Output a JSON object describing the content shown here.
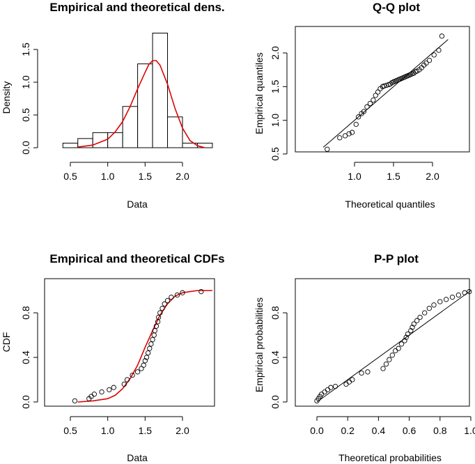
{
  "chart_data": [
    {
      "type": "bar",
      "title": "Empirical and theoretical dens.",
      "xlabel": "Data",
      "ylabel": "Density",
      "xlim": [
        0.4,
        2.4
      ],
      "ylim": [
        0,
        1.75
      ],
      "xticks": [
        "0.5",
        "1.0",
        "1.5",
        "2.0"
      ],
      "yticks": [
        "0.0",
        "0.5",
        "1.0",
        "1.5"
      ],
      "bins": [
        {
          "x0": 0.4,
          "x1": 0.6,
          "value": 0.07
        },
        {
          "x0": 0.6,
          "x1": 0.8,
          "value": 0.14
        },
        {
          "x0": 0.8,
          "x1": 1.0,
          "value": 0.23
        },
        {
          "x0": 1.0,
          "x1": 1.2,
          "value": 0.23
        },
        {
          "x0": 1.2,
          "x1": 1.4,
          "value": 0.63
        },
        {
          "x0": 1.4,
          "x1": 1.6,
          "value": 1.28
        },
        {
          "x0": 1.6,
          "x1": 1.8,
          "value": 1.75
        },
        {
          "x0": 1.8,
          "x1": 2.0,
          "value": 0.47
        },
        {
          "x0": 2.0,
          "x1": 2.2,
          "value": 0.07
        },
        {
          "x0": 2.2,
          "x1": 2.4,
          "value": 0.07
        }
      ],
      "density_curve": {
        "color": "#e00000",
        "points": [
          [
            0.6,
            0.01
          ],
          [
            0.8,
            0.04
          ],
          [
            1.0,
            0.13
          ],
          [
            1.1,
            0.24
          ],
          [
            1.2,
            0.4
          ],
          [
            1.3,
            0.63
          ],
          [
            1.4,
            0.9
          ],
          [
            1.5,
            1.15
          ],
          [
            1.55,
            1.27
          ],
          [
            1.6,
            1.33
          ],
          [
            1.65,
            1.33
          ],
          [
            1.7,
            1.26
          ],
          [
            1.8,
            0.97
          ],
          [
            1.9,
            0.6
          ],
          [
            2.0,
            0.3
          ],
          [
            2.1,
            0.11
          ],
          [
            2.2,
            0.03
          ],
          [
            2.3,
            0.0
          ]
        ]
      }
    },
    {
      "type": "scatter",
      "title": "Q-Q plot",
      "xlabel": "Theoretical quantiles",
      "ylabel": "Empirical quantiles",
      "xlim": [
        0.6,
        2.2
      ],
      "ylim": [
        0.5,
        2.3
      ],
      "xticks": [
        "1.0",
        "1.5",
        "2.0"
      ],
      "yticks": [
        "0.5",
        "1.0",
        "1.5",
        "2.0"
      ],
      "reference_line": [
        [
          0.6,
          0.6
        ],
        [
          2.2,
          2.2
        ]
      ],
      "points": [
        [
          0.65,
          0.57
        ],
        [
          0.81,
          0.74
        ],
        [
          0.88,
          0.77
        ],
        [
          0.93,
          0.8
        ],
        [
          0.97,
          0.82
        ],
        [
          1.02,
          0.94
        ],
        [
          1.05,
          1.05
        ],
        [
          1.09,
          1.1
        ],
        [
          1.12,
          1.13
        ],
        [
          1.16,
          1.2
        ],
        [
          1.2,
          1.25
        ],
        [
          1.24,
          1.3
        ],
        [
          1.27,
          1.37
        ],
        [
          1.3,
          1.42
        ],
        [
          1.33,
          1.47
        ],
        [
          1.36,
          1.5
        ],
        [
          1.38,
          1.51
        ],
        [
          1.41,
          1.52
        ],
        [
          1.44,
          1.53
        ],
        [
          1.46,
          1.54
        ],
        [
          1.48,
          1.56
        ],
        [
          1.5,
          1.57
        ],
        [
          1.52,
          1.58
        ],
        [
          1.54,
          1.59
        ],
        [
          1.56,
          1.6
        ],
        [
          1.58,
          1.61
        ],
        [
          1.6,
          1.62
        ],
        [
          1.62,
          1.63
        ],
        [
          1.64,
          1.64
        ],
        [
          1.66,
          1.65
        ],
        [
          1.68,
          1.66
        ],
        [
          1.7,
          1.67
        ],
        [
          1.72,
          1.68
        ],
        [
          1.74,
          1.69
        ],
        [
          1.76,
          1.7
        ],
        [
          1.78,
          1.72
        ],
        [
          1.8,
          1.73
        ],
        [
          1.83,
          1.75
        ],
        [
          1.86,
          1.78
        ],
        [
          1.89,
          1.82
        ],
        [
          1.92,
          1.85
        ],
        [
          1.96,
          1.89
        ],
        [
          2.02,
          1.97
        ],
        [
          2.08,
          2.04
        ],
        [
          2.12,
          2.25
        ]
      ]
    },
    {
      "type": "line",
      "title": "Empirical and theoretical CDFs",
      "xlabel": "Data",
      "ylabel": "CDF",
      "xlim": [
        0.4,
        2.4
      ],
      "ylim": [
        0,
        1
      ],
      "xticks": [
        "0.5",
        "1.0",
        "1.5",
        "2.0"
      ],
      "yticks": [
        "0.0",
        "0.4",
        "0.8"
      ],
      "empirical_points": [
        [
          0.56,
          0.01
        ],
        [
          0.75,
          0.03
        ],
        [
          0.78,
          0.05
        ],
        [
          0.82,
          0.07
        ],
        [
          0.92,
          0.09
        ],
        [
          1.02,
          0.11
        ],
        [
          1.08,
          0.13
        ],
        [
          1.22,
          0.16
        ],
        [
          1.26,
          0.2
        ],
        [
          1.33,
          0.24
        ],
        [
          1.4,
          0.27
        ],
        [
          1.45,
          0.3
        ],
        [
          1.48,
          0.33
        ],
        [
          1.5,
          0.37
        ],
        [
          1.52,
          0.4
        ],
        [
          1.54,
          0.44
        ],
        [
          1.56,
          0.48
        ],
        [
          1.58,
          0.52
        ],
        [
          1.6,
          0.56
        ],
        [
          1.62,
          0.6
        ],
        [
          1.63,
          0.64
        ],
        [
          1.65,
          0.68
        ],
        [
          1.67,
          0.72
        ],
        [
          1.68,
          0.76
        ],
        [
          1.7,
          0.8
        ],
        [
          1.73,
          0.84
        ],
        [
          1.76,
          0.88
        ],
        [
          1.8,
          0.91
        ],
        [
          1.85,
          0.94
        ],
        [
          1.93,
          0.96
        ],
        [
          2.0,
          0.98
        ],
        [
          2.25,
          0.99
        ]
      ],
      "theoretical_curve": {
        "color": "#e00000",
        "points": [
          [
            0.6,
            0.0
          ],
          [
            0.8,
            0.01
          ],
          [
            1.0,
            0.03
          ],
          [
            1.1,
            0.06
          ],
          [
            1.2,
            0.12
          ],
          [
            1.3,
            0.21
          ],
          [
            1.4,
            0.33
          ],
          [
            1.5,
            0.49
          ],
          [
            1.6,
            0.64
          ],
          [
            1.7,
            0.78
          ],
          [
            1.8,
            0.88
          ],
          [
            1.9,
            0.95
          ],
          [
            2.0,
            0.98
          ],
          [
            2.1,
            0.99
          ],
          [
            2.2,
            1.0
          ],
          [
            2.4,
            1.0
          ]
        ]
      }
    },
    {
      "type": "scatter",
      "title": "P-P plot",
      "xlabel": "Theoretical probabilities",
      "ylabel": "Empirical probabilities",
      "xlim": [
        0,
        1
      ],
      "ylim": [
        0,
        1
      ],
      "xticks": [
        "0.0",
        "0.2",
        "0.4",
        "0.6",
        "0.8",
        "1.0"
      ],
      "yticks": [
        "0.0",
        "0.4",
        "0.8"
      ],
      "reference_line": [
        [
          0,
          0
        ],
        [
          1,
          1
        ]
      ],
      "points": [
        [
          0.0,
          0.01
        ],
        [
          0.01,
          0.03
        ],
        [
          0.02,
          0.05
        ],
        [
          0.03,
          0.07
        ],
        [
          0.05,
          0.09
        ],
        [
          0.07,
          0.11
        ],
        [
          0.09,
          0.13
        ],
        [
          0.12,
          0.14
        ],
        [
          0.19,
          0.16
        ],
        [
          0.21,
          0.18
        ],
        [
          0.23,
          0.2
        ],
        [
          0.29,
          0.26
        ],
        [
          0.33,
          0.27
        ],
        [
          0.43,
          0.3
        ],
        [
          0.45,
          0.34
        ],
        [
          0.47,
          0.38
        ],
        [
          0.49,
          0.42
        ],
        [
          0.51,
          0.46
        ],
        [
          0.53,
          0.48
        ],
        [
          0.55,
          0.52
        ],
        [
          0.57,
          0.55
        ],
        [
          0.58,
          0.58
        ],
        [
          0.59,
          0.61
        ],
        [
          0.61,
          0.64
        ],
        [
          0.62,
          0.67
        ],
        [
          0.63,
          0.7
        ],
        [
          0.65,
          0.73
        ],
        [
          0.67,
          0.76
        ],
        [
          0.7,
          0.8
        ],
        [
          0.73,
          0.84
        ],
        [
          0.76,
          0.87
        ],
        [
          0.8,
          0.9
        ],
        [
          0.84,
          0.92
        ],
        [
          0.88,
          0.94
        ],
        [
          0.92,
          0.96
        ],
        [
          0.96,
          0.98
        ],
        [
          0.99,
          0.99
        ]
      ]
    }
  ]
}
